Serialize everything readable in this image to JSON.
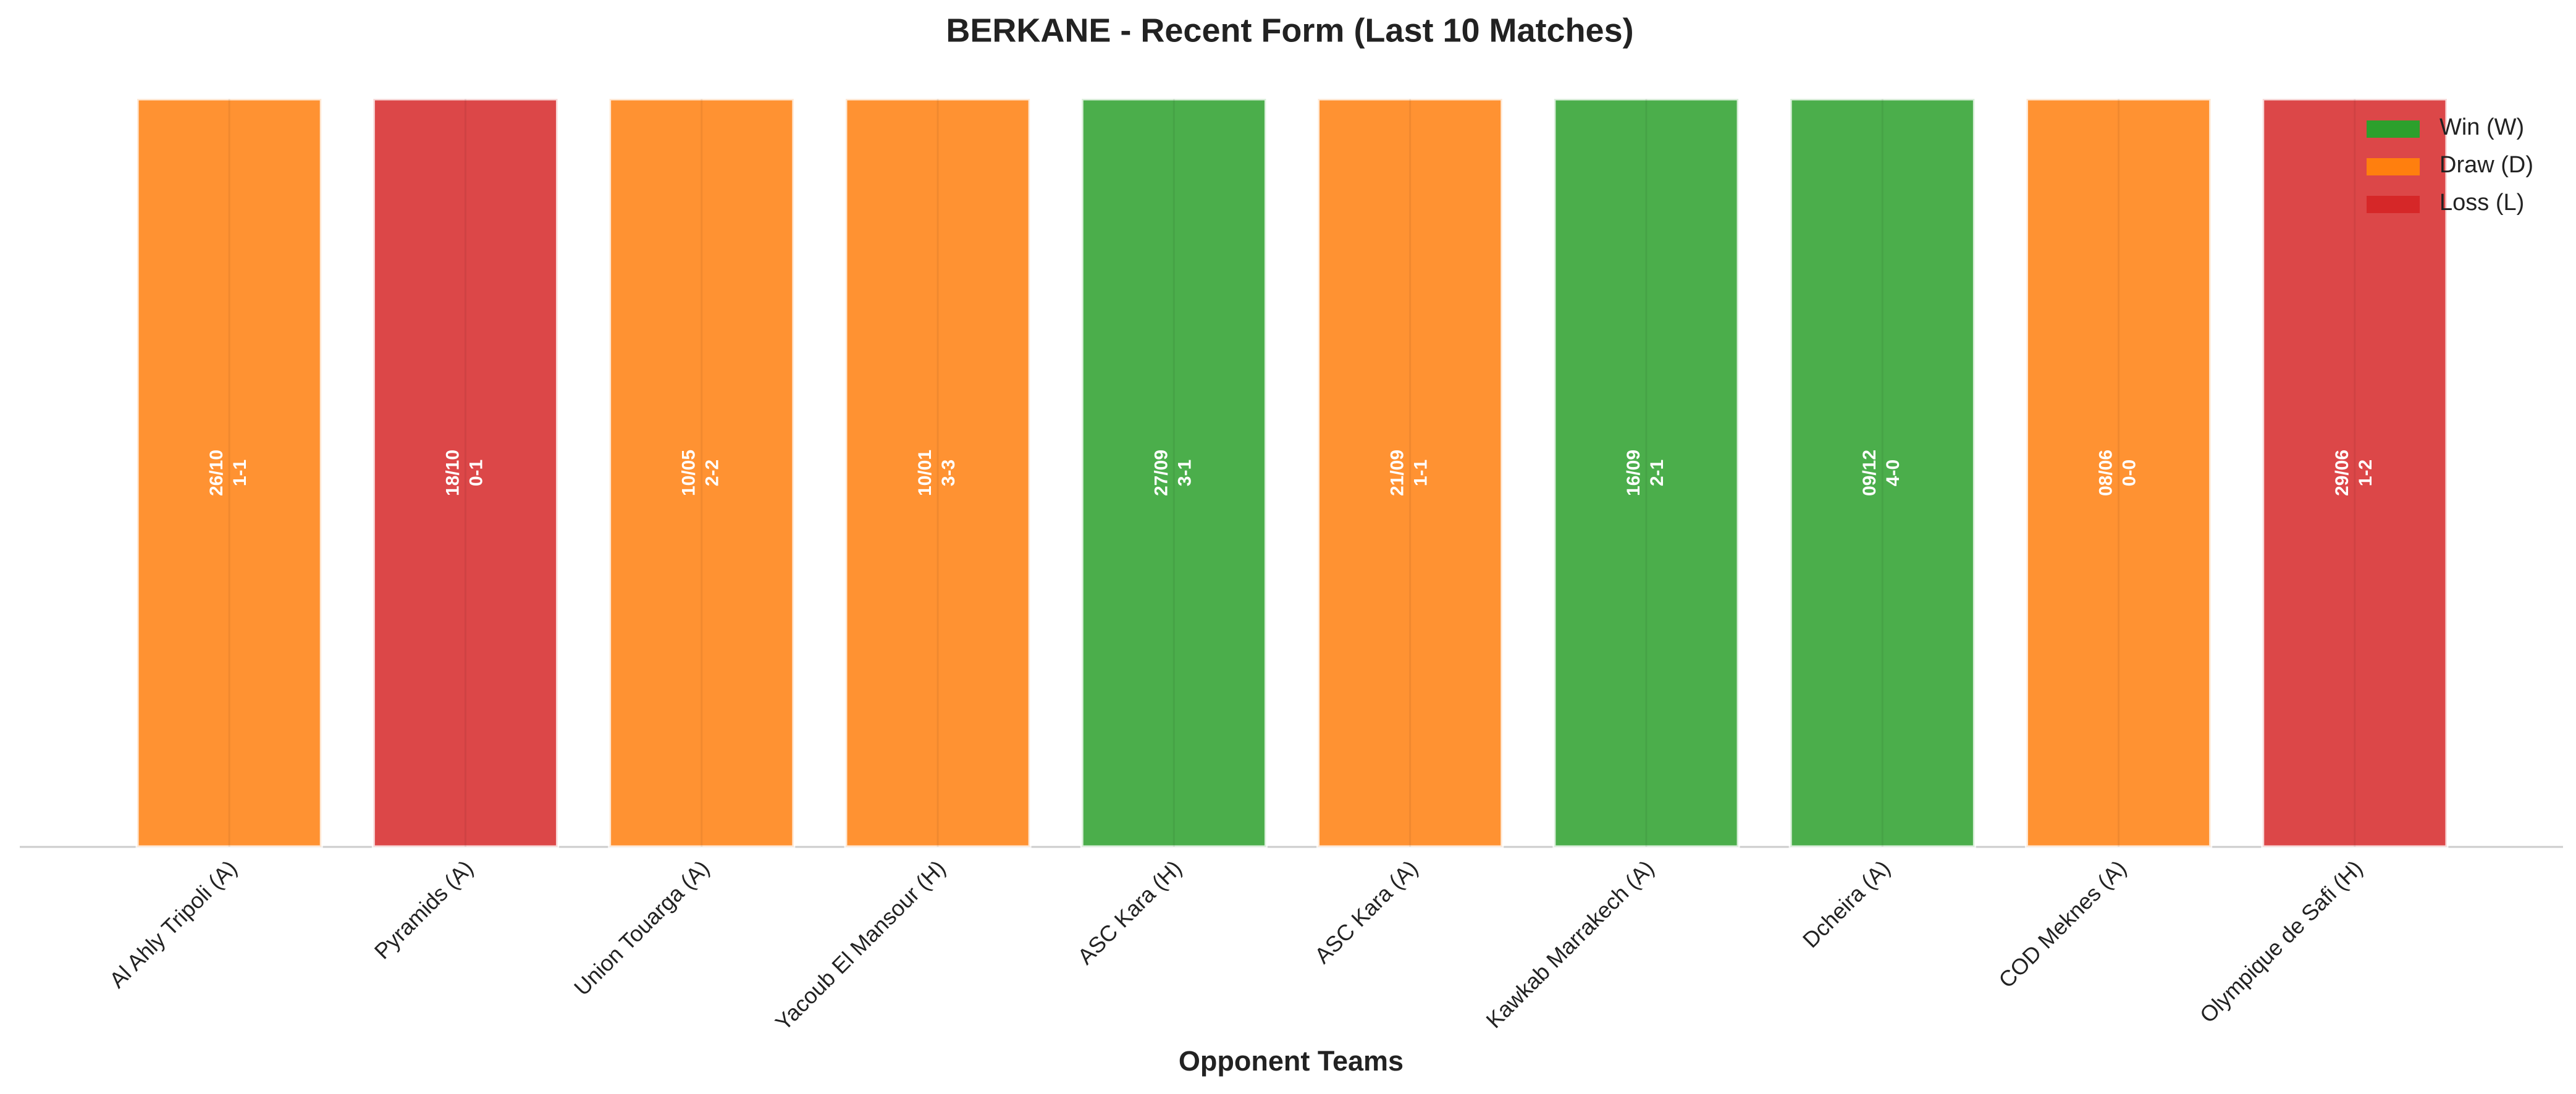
{
  "chart_data": {
    "type": "bar",
    "title": "BERKANE - Recent Form (Last 10 Matches)",
    "x_label": "Opponent Teams",
    "categories": [
      "Al Ahly Tripoli (A)",
      "Pyramids (A)",
      "Union Touarga (A)",
      "Yacoub El Mansour (H)",
      "ASC Kara (H)",
      "ASC Kara (A)",
      "Kawkab Marrakech (A)",
      "Dcheira (A)",
      "COD Meknes (A)",
      "Olympique de Safi (H)"
    ],
    "values": [
      1,
      1,
      1,
      1,
      1,
      1,
      1,
      1,
      1,
      1
    ],
    "dates": [
      "26/10",
      "18/10",
      "10/05",
      "10/01",
      "27/09",
      "21/09",
      "16/09",
      "09/12",
      "08/06",
      "29/06"
    ],
    "scores": [
      "1-1",
      "0-1",
      "2-2",
      "3-3",
      "3-1",
      "1-1",
      "2-1",
      "4-0",
      "0-0",
      "1-2"
    ],
    "colors": [
      "#ff7f0e",
      "#d62728",
      "#ff7f0e",
      "#ff7f0e",
      "#2ca02c",
      "#ff7f0e",
      "#2ca02c",
      "#2ca02c",
      "#ff7f0e",
      "#d62728"
    ],
    "ylim": [
      0,
      1
    ],
    "legend": [
      {
        "name": "Win (W)",
        "color": "#2ca02c"
      },
      {
        "name": "Draw (D)",
        "color": "#ff7f0e"
      },
      {
        "name": "Loss (L)",
        "color": "#d62728"
      }
    ],
    "legend_position": "upper right"
  }
}
